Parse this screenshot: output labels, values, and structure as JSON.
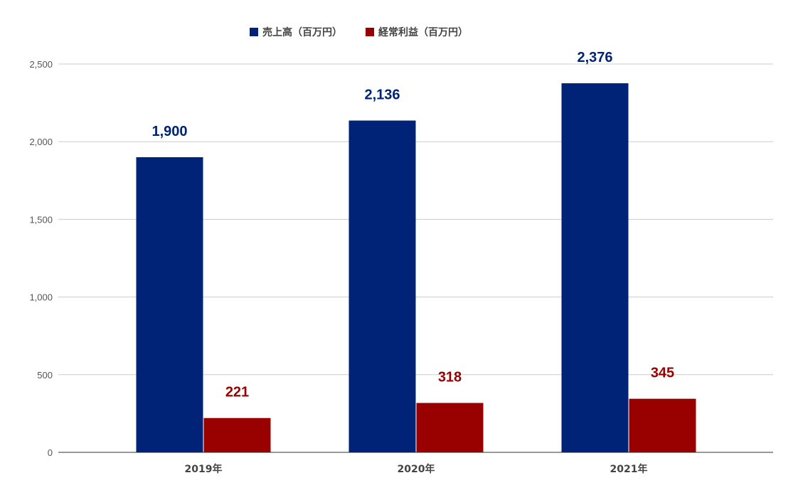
{
  "chart_data": {
    "type": "bar",
    "categories": [
      "2019年",
      "2020年",
      "2021年"
    ],
    "series": [
      {
        "name": "売上高（百万円）",
        "color": "#002277",
        "values": [
          1900,
          2136,
          2376
        ],
        "labels": [
          "1,900",
          "2,136",
          "2,376"
        ]
      },
      {
        "name": "経常利益（百万円）",
        "color": "#990000",
        "values": [
          221,
          318,
          345
        ],
        "labels": [
          "221",
          "318",
          "345"
        ]
      }
    ],
    "yticks": [
      {
        "value": 0,
        "label": "0"
      },
      {
        "value": 500,
        "label": "500"
      },
      {
        "value": 1000,
        "label": "1,000"
      },
      {
        "value": 1500,
        "label": "1,500"
      },
      {
        "value": 2000,
        "label": "2,000"
      },
      {
        "value": 2500,
        "label": "2,500"
      }
    ],
    "ylim": [
      0,
      2500
    ],
    "grid": true,
    "legend_position": "top-center",
    "title": "",
    "xlabel": "",
    "ylabel": ""
  }
}
